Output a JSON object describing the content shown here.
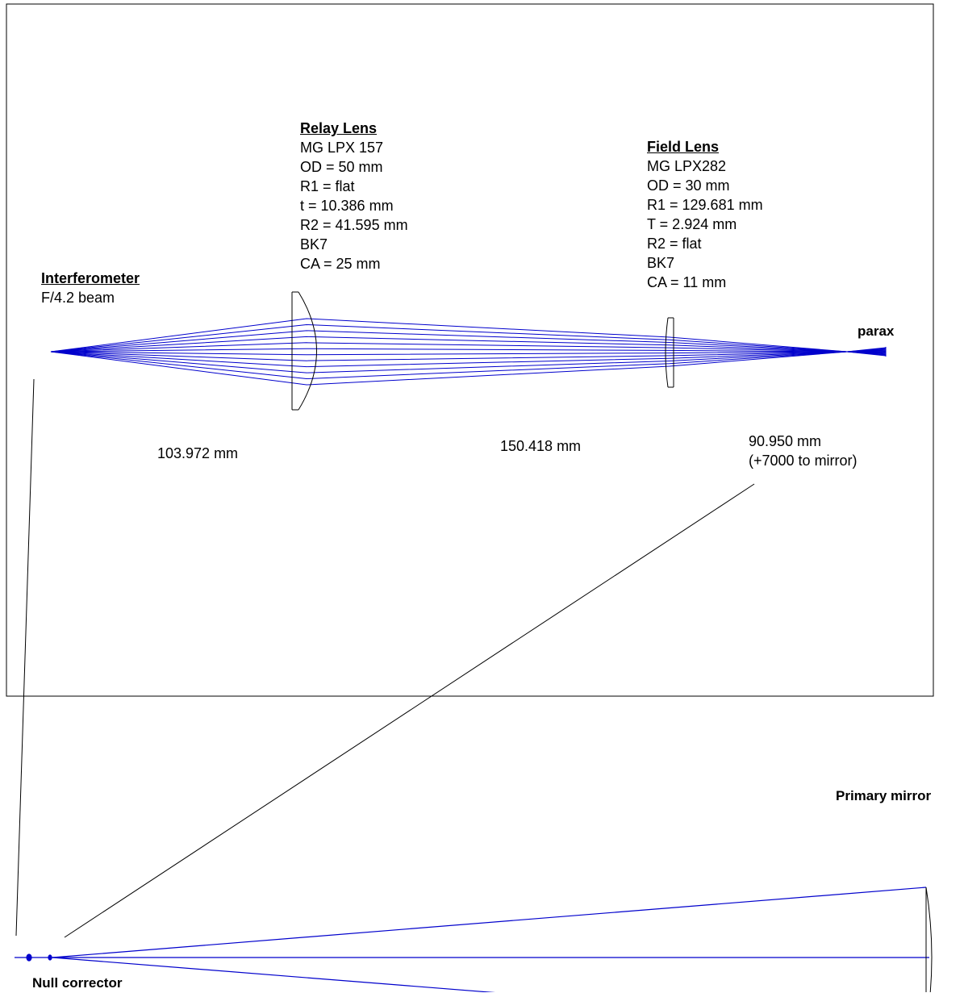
{
  "colors": {
    "rays": "#0000cc",
    "outline": "#000000",
    "background": "#ffffff"
  },
  "interferometer": {
    "title": "Interferometer",
    "line1": "F/4.2 beam"
  },
  "relay_lens": {
    "title": "Relay Lens",
    "lines": [
      "MG LPX 157",
      "OD = 50 mm",
      "R1 = flat",
      "t = 10.386 mm",
      "R2 = 41.595 mm",
      "BK7",
      "CA = 25 mm"
    ]
  },
  "field_lens": {
    "title": "Field Lens",
    "lines": [
      "MG LPX282",
      "OD = 30 mm",
      "R1 = 129.681 mm",
      "T = 2.924 mm",
      "R2 = flat",
      "BK7",
      "CA = 11 mm"
    ]
  },
  "parax_label": "parax",
  "distances": {
    "d1": "103.972 mm",
    "d2": "150.418 mm",
    "d3_line1": "90.950 mm",
    "d3_line2": "(+7000 to mirror)"
  },
  "primary_mirror_label": "Primary mirror",
  "null_corrector_label": "Null corrector"
}
